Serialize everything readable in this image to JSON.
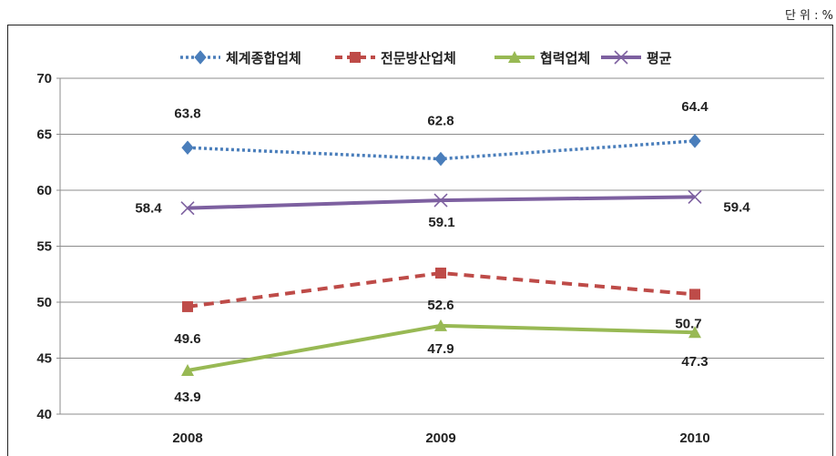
{
  "unit_label": "단 위 : %",
  "chart_data": {
    "type": "line",
    "title": "",
    "xlabel": "",
    "ylabel": "",
    "categories": [
      "2008",
      "2009",
      "2010"
    ],
    "ylim": [
      40,
      70
    ],
    "yticks": [
      "40",
      "45",
      "50",
      "55",
      "60",
      "65",
      "70"
    ],
    "grid": true,
    "legend_position": "top",
    "series": [
      {
        "name": "체계종합업체",
        "values": [
          63.8,
          62.8,
          64.4
        ],
        "labels": [
          "63.8",
          "62.8",
          "64.4"
        ],
        "color": "#4a7ebb",
        "line_style": "dotted",
        "marker": "diamond"
      },
      {
        "name": "전문방산업체",
        "values": [
          49.6,
          52.6,
          50.7
        ],
        "labels": [
          "49.6",
          "52.6",
          "50.7"
        ],
        "color": "#be4b48",
        "line_style": "dashed",
        "marker": "square"
      },
      {
        "name": "협력업체",
        "values": [
          43.9,
          47.9,
          47.3
        ],
        "labels": [
          "43.9",
          "47.9",
          "47.3"
        ],
        "color": "#98b954",
        "line_style": "solid",
        "marker": "triangle"
      },
      {
        "name": "평균",
        "values": [
          58.4,
          59.1,
          59.4
        ],
        "labels": [
          "58.4",
          "59.1",
          "59.4"
        ],
        "color": "#7d60a0",
        "line_style": "solid",
        "marker": "x"
      }
    ]
  }
}
